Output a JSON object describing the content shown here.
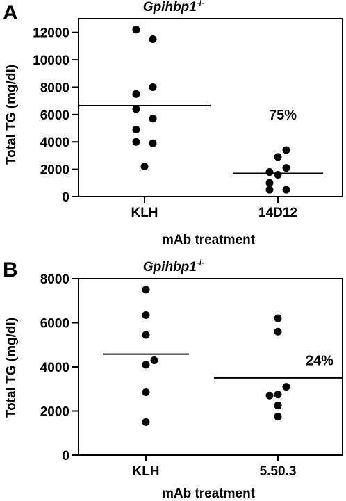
{
  "chart_data": [
    {
      "type": "scatter",
      "panel_label": "A",
      "title": "Gpihbp1",
      "title_superscript": "-/-",
      "xlabel": "mAb treatment",
      "ylabel": "Total TG (mg/dl)",
      "ylim": [
        0,
        13000
      ],
      "yticks": [
        0,
        2000,
        4000,
        6000,
        8000,
        10000,
        12000
      ],
      "grid": false,
      "categories": [
        "KLH",
        "14D12"
      ],
      "groups": [
        {
          "category": "KLH",
          "values": [
            12200,
            11500,
            8000,
            7500,
            6400,
            5700,
            4900,
            4000,
            3900,
            2200
          ],
          "offsets": [
            -1,
            1,
            1,
            -1,
            -1,
            1,
            -1,
            -1,
            1,
            0
          ],
          "mean": 6650
        },
        {
          "category": "14D12",
          "values": [
            3400,
            2900,
            2100,
            1800,
            1600,
            1000,
            500,
            500
          ],
          "offsets": [
            1,
            0,
            1,
            -1,
            0,
            -1,
            -1,
            1
          ],
          "mean": 1700
        }
      ],
      "annotations": [
        {
          "text": "75%",
          "category": "14D12",
          "y": 6000
        }
      ]
    },
    {
      "type": "scatter",
      "panel_label": "B",
      "title": "Gpihbp1",
      "title_superscript": "-/-",
      "xlabel": "mAb treatment",
      "ylabel": "Total TG (mg/dl)",
      "ylim": [
        0,
        8000
      ],
      "yticks": [
        0,
        2000,
        4000,
        6000,
        8000
      ],
      "grid": false,
      "categories": [
        "KLH",
        "5.50.3"
      ],
      "groups": [
        {
          "category": "KLH",
          "values": [
            7500,
            6350,
            5450,
            4300,
            4100,
            2850,
            1500
          ],
          "offsets": [
            0,
            0,
            0,
            1,
            0,
            0,
            0
          ],
          "mean": 4580
        },
        {
          "category": "5.50.3",
          "values": [
            6200,
            5600,
            3100,
            2750,
            2700,
            2250,
            1750
          ],
          "offsets": [
            0,
            0,
            1,
            0,
            -1,
            0,
            0
          ],
          "mean": 3500
        }
      ],
      "annotations": [
        {
          "text": "24%",
          "category": "5.50.3",
          "y": 4300
        }
      ]
    }
  ]
}
